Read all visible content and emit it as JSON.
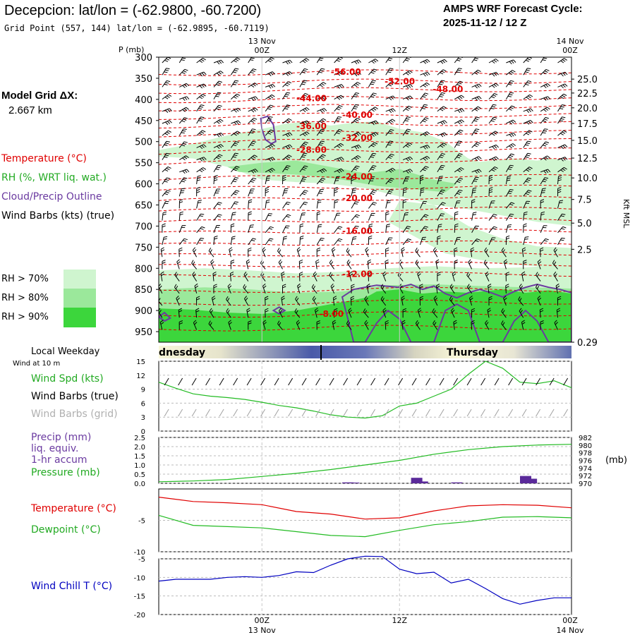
{
  "header": {
    "title": "Decepcion:  lat/lon = (-62.9800, -60.7200)",
    "grid_point": "Grid Point (557, 144) lat/lon = (-62.9895, -60.7119)",
    "cycle_line1": "AMPS WRF Forecast Cycle:",
    "cycle_line2": "2025-11-12 / 12  Z"
  },
  "model_grid": {
    "label": "Model Grid ΔX:",
    "value": "2.667 km"
  },
  "legend": {
    "temperature": "Temperature (°C)",
    "rh": "RH (%, WRT liq. wat.)",
    "cloud": "Cloud/Precip Outline",
    "wind": "Wind Barbs (kts) (true)",
    "rh_keys": [
      {
        "label": "RH > 70%",
        "color": "#cff5cf"
      },
      {
        "label": "RH > 80%",
        "color": "#9be89b"
      },
      {
        "label": "RH > 90%",
        "color": "#3cd63c"
      }
    ]
  },
  "time_axis": {
    "top_dates": [
      "13 Nov",
      "14 Nov"
    ],
    "top_hours": [
      "00Z",
      "12Z",
      "00Z"
    ],
    "bottom_hours": [
      "00Z",
      "12Z",
      "00Z"
    ],
    "bottom_dates": [
      "13 Nov",
      "14 Nov"
    ]
  },
  "weekday": {
    "label": "Local Weekday",
    "day1": "dnesday",
    "day2": "Thursday"
  },
  "wind_panel": {
    "sublabel": "Wind at 10 m",
    "spd_label": "Wind Spd (kts)",
    "true_label": "Wind Barbs (true)",
    "grid_label": "Wind Barbs (grid)"
  },
  "precip_panel": {
    "precip_label": "Precip (mm)",
    "liq_label": "liq. equiv.",
    "accum_label": "1-hr accum",
    "pressure_label": "Pressure (mb)",
    "unit": "(mb)"
  },
  "temp_panel": {
    "temp_label": "Temperature (°C)",
    "dew_label": "Dewpoint (°C)"
  },
  "chill_panel": {
    "label": "Wind Chill T (°C)"
  },
  "colors": {
    "temperature": "#e00000",
    "rh": "#3cd63c",
    "cloud": "#6a3aa0",
    "wind_true": "#000000",
    "wind_grid": "#a0a0a0",
    "wind_speed": "#22bb22",
    "pressure": "#22bb22",
    "precip": "#5a2a9a",
    "dewpoint": "#22bb22",
    "wind_chill": "#0000c0"
  },
  "chart_data": [
    {
      "type": "area",
      "ylabel": "P (mb)",
      "ylabel_right": "Kft MSL",
      "x_range_hours": [
        0,
        36
      ],
      "y_ticks_mb": [
        300,
        350,
        400,
        450,
        500,
        550,
        600,
        650,
        700,
        750,
        800,
        850,
        900,
        950
      ],
      "right_ticks_kft": [
        "25.0",
        "22.5",
        "20.0",
        "17.5",
        "15.0",
        "12.5",
        "10.0",
        "7.5",
        "5.0",
        "2.5",
        "0.29"
      ],
      "right_ticks_mb": [
        352,
        385,
        420,
        457,
        497,
        539,
        586,
        637,
        693,
        755,
        975
      ],
      "temperature_labels": [
        {
          "label": "-56.00",
          "t": 15,
          "p": 335
        },
        {
          "label": "-52.00",
          "t": 19.7,
          "p": 358
        },
        {
          "label": "-48.00",
          "t": 23.9,
          "p": 376
        },
        {
          "label": "-44.00",
          "t": 12,
          "p": 398
        },
        {
          "label": "-40.00",
          "t": 16,
          "p": 437
        },
        {
          "label": "-36.00",
          "t": 12,
          "p": 464
        },
        {
          "label": "-32.00",
          "t": 16,
          "p": 491
        },
        {
          "label": "-28.00",
          "t": 12,
          "p": 520
        },
        {
          "label": "-24.00",
          "t": 16,
          "p": 583
        },
        {
          "label": "-20.00",
          "t": 16,
          "p": 634
        },
        {
          "label": "-16.00",
          "t": 16,
          "p": 712
        },
        {
          "label": "-12.00",
          "t": 16,
          "p": 814
        },
        {
          "label": "-8.00",
          "t": 14,
          "p": 908
        }
      ]
    },
    {
      "type": "line",
      "series": [
        {
          "name": "Wind Spd (kts)",
          "x": [
            0,
            1.5,
            3,
            4.5,
            6,
            7.5,
            9,
            10.5,
            12,
            13.5,
            15,
            16.5,
            18,
            19.5,
            21,
            22.5,
            24,
            25.5,
            27,
            28.5,
            30,
            31.5,
            33,
            34.5,
            36
          ],
          "values": [
            10.5,
            9.2,
            8,
            7.5,
            7.2,
            6.8,
            6.2,
            5.5,
            5,
            4.3,
            3.5,
            3,
            2.8,
            3.3,
            5.4,
            6,
            7.5,
            9,
            12.2,
            15,
            13.5,
            10.5,
            10.2,
            10.8,
            9.3
          ]
        }
      ],
      "ylim": [
        0,
        15
      ],
      "y_ticks": [
        0,
        3,
        6,
        9,
        12,
        15
      ]
    },
    {
      "type": "bar",
      "series": [
        {
          "name": "Precip (mm)",
          "x": [
            16.5,
            17,
            22.5,
            23,
            26,
            32,
            32.5
          ],
          "values": [
            0.05,
            0.04,
            0.3,
            0.1,
            0.05,
            0.4,
            0.25
          ]
        },
        {
          "name": "Pressure (mb)",
          "x": [
            0,
            3,
            6,
            9,
            12,
            15,
            18,
            21,
            24,
            27,
            30,
            33,
            36
          ],
          "values": [
            970.4,
            970.6,
            971,
            971.8,
            972.6,
            973.6,
            974.8,
            976,
            977.6,
            978.8,
            979.6,
            980,
            980.2
          ]
        }
      ],
      "ylim": [
        0,
        2.5
      ],
      "y_ticks": [
        "0.0",
        "0.5",
        "1.0",
        "1.5",
        "2.0",
        "2.5"
      ],
      "y2lim": [
        970,
        982
      ],
      "y2_ticks": [
        "970",
        "972",
        "974",
        "976",
        "978",
        "980",
        "982"
      ]
    },
    {
      "type": "line",
      "series": [
        {
          "name": "Temperature (°C)",
          "x": [
            0,
            3,
            6,
            9,
            12,
            15,
            18,
            21,
            24,
            27,
            30,
            33,
            36
          ],
          "values": [
            -1.3,
            -2,
            -2.2,
            -2.5,
            -3.6,
            -4,
            -4.8,
            -4.6,
            -3.5,
            -2.7,
            -2.5,
            -2.6,
            -3
          ]
        },
        {
          "name": "Dewpoint (°C)",
          "x": [
            0,
            3,
            6,
            9,
            12,
            15,
            18,
            21,
            24,
            27,
            30,
            33,
            36
          ],
          "values": [
            -4.2,
            -5.8,
            -6,
            -6.2,
            -6.8,
            -7.4,
            -7.6,
            -6.6,
            -5.7,
            -5.2,
            -4.5,
            -4.4,
            -4.6
          ]
        }
      ],
      "ylim": [
        -10,
        0
      ],
      "y_ticks": [
        -10,
        -5
      ]
    },
    {
      "type": "line",
      "series": [
        {
          "name": "Wind Chill T (°C)",
          "x": [
            0,
            1.5,
            3,
            4.5,
            6,
            7.5,
            9,
            10.5,
            12,
            13.5,
            15,
            16.5,
            18,
            19.5,
            21,
            22.5,
            24,
            25.5,
            27,
            28.5,
            30,
            31.5,
            33,
            34.5,
            36
          ],
          "values": [
            -11,
            -10.5,
            -10.5,
            -10.5,
            -10,
            -9.8,
            -10,
            -9.5,
            -8.5,
            -8.7,
            -6.7,
            -5,
            -4.3,
            -4.4,
            -7.8,
            -9,
            -8.6,
            -11.5,
            -10.5,
            -13,
            -15.7,
            -17.2,
            -16.2,
            -15.5,
            -15.5
          ]
        }
      ],
      "ylim": [
        -20,
        -5
      ],
      "y_ticks": [
        -20,
        -15,
        -10,
        -5
      ]
    }
  ]
}
